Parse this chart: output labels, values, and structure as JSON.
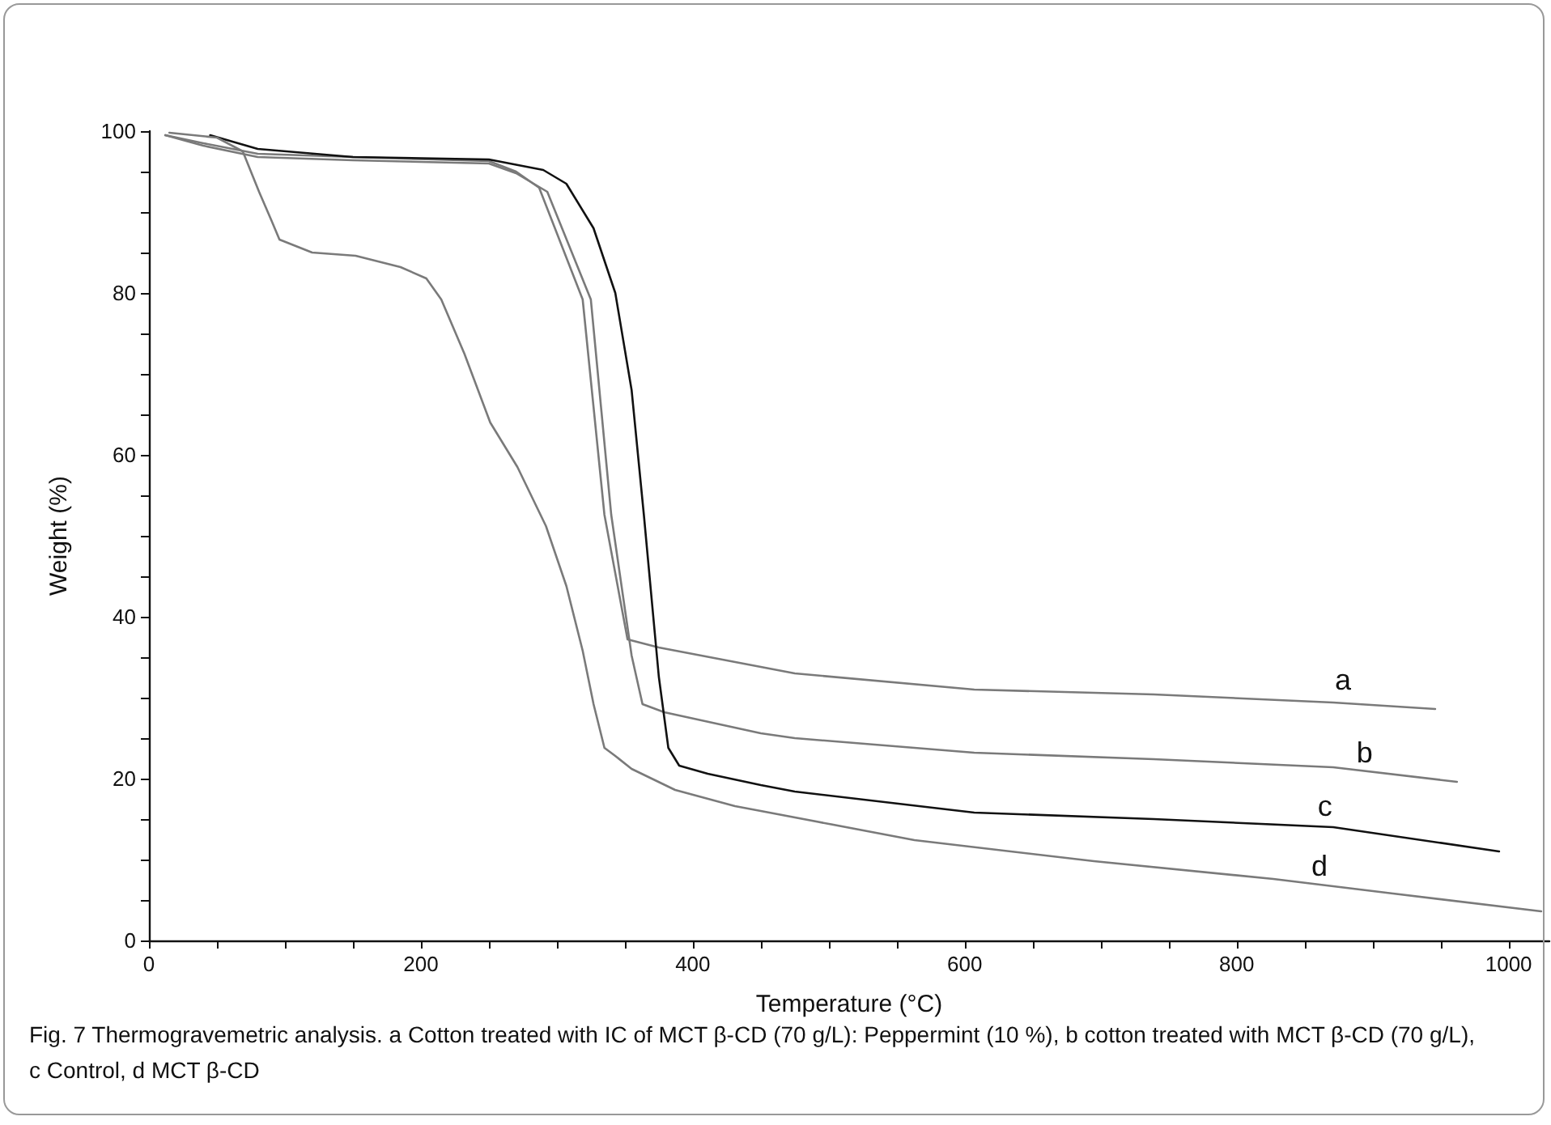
{
  "chart_data": {
    "type": "line",
    "xlabel": "Temperature (°C)",
    "ylabel": "Weight (%)",
    "xlim": [
      0,
      1030
    ],
    "xticks": [
      0,
      {
        "value": 50,
        "label": null
      },
      {
        "value": 100,
        "label": null
      },
      {
        "value": 150,
        "label": null
      },
      200,
      {
        "value": 250,
        "label": null
      },
      {
        "value": 300,
        "label": null
      },
      {
        "value": 350,
        "label": null
      },
      400,
      {
        "value": 450,
        "label": null
      },
      {
        "value": 500,
        "label": null
      },
      {
        "value": 550,
        "label": null
      },
      600,
      {
        "value": 650,
        "label": null
      },
      {
        "value": 700,
        "label": null
      },
      {
        "value": 750,
        "label": null
      },
      800,
      {
        "value": 850,
        "label": null
      },
      {
        "value": 900,
        "label": null
      },
      {
        "value": 950,
        "label": null
      },
      1000
    ],
    "ylim": [
      0,
      100
    ],
    "yticks": [
      0,
      {
        "value": 5,
        "label": null
      },
      {
        "value": 10,
        "label": null
      },
      {
        "value": 15,
        "label": null
      },
      20,
      {
        "value": 25,
        "label": null
      },
      {
        "value": 30,
        "label": null
      },
      {
        "value": 35,
        "label": null
      },
      40,
      {
        "value": 45,
        "label": null
      },
      {
        "value": 50,
        "label": null
      },
      {
        "value": 55,
        "label": null
      },
      60,
      {
        "value": 65,
        "label": null
      },
      {
        "value": 70,
        "label": null
      },
      {
        "value": 75,
        "label": null
      },
      80,
      {
        "value": 85,
        "label": null
      },
      {
        "value": 90,
        "label": null
      },
      {
        "value": 95,
        "label": null
      },
      100
    ],
    "grid": false,
    "legend": false,
    "marker": "none",
    "line_style": "solid",
    "series": [
      {
        "name": "a",
        "color": "#7a7a7a",
        "x": [
          12,
          40,
          80,
          150,
          250,
          270,
          287,
          319,
          335,
          352,
          375,
          450,
          475,
          607,
          739,
          871,
          946
        ],
        "values": [
          99.5,
          98.5,
          97.2,
          96.8,
          96.3,
          95,
          93,
          79.2,
          52.6,
          37.2,
          36.2,
          33.8,
          33,
          31,
          30.4,
          29.4,
          28.6
        ]
      },
      {
        "name": "b",
        "color": "#7a7a7a",
        "x": [
          12,
          40,
          80,
          150,
          250,
          270,
          293,
          325,
          340,
          355,
          363,
          379,
          450,
          475,
          607,
          739,
          871,
          962
        ],
        "values": [
          99.5,
          98.2,
          96.8,
          96.4,
          96,
          94.8,
          92.5,
          79.2,
          52.6,
          35.2,
          29.2,
          28.2,
          25.6,
          25,
          23.2,
          22.4,
          21.4,
          19.6
        ]
      },
      {
        "name": "c",
        "color": "#111111",
        "x": [
          45,
          80,
          150,
          250,
          290,
          307,
          327,
          343,
          355,
          364,
          375,
          382,
          390,
          411,
          450,
          475,
          607,
          739,
          871,
          993
        ],
        "values": [
          99.5,
          97.8,
          96.8,
          96.5,
          95.2,
          93.5,
          88,
          80,
          68,
          52.6,
          32.6,
          23.8,
          21.6,
          20.6,
          19.2,
          18.4,
          15.8,
          15,
          14,
          11
        ]
      },
      {
        "name": "d",
        "color": "#7a7a7a",
        "x": [
          15,
          50,
          69,
          81,
          90,
          96,
          120,
          152,
          185,
          204,
          215,
          232,
          251,
          271,
          292,
          307,
          319,
          327,
          335,
          343,
          355,
          387,
          431,
          450,
          563,
          695,
          827,
          915,
          1024
        ],
        "values": [
          99.8,
          99.2,
          97.5,
          92.5,
          89,
          86.6,
          85,
          84.6,
          83.2,
          81.8,
          79.2,
          72.5,
          64,
          58.5,
          51.2,
          43.8,
          35.8,
          29.2,
          23.8,
          22.8,
          21.2,
          18.6,
          16.6,
          16,
          12.4,
          9.8,
          7.6,
          5.8,
          3.6
        ]
      }
    ],
    "annotations": [
      "Fig. 7 Thermogravemetric analysis. a Cotton treated with IC of MCT β-CD (70 g/L): Peppermint (10 %), b cotton treated with MCT β-CD (70 g/L), c Control, d MCT β-CD"
    ]
  }
}
